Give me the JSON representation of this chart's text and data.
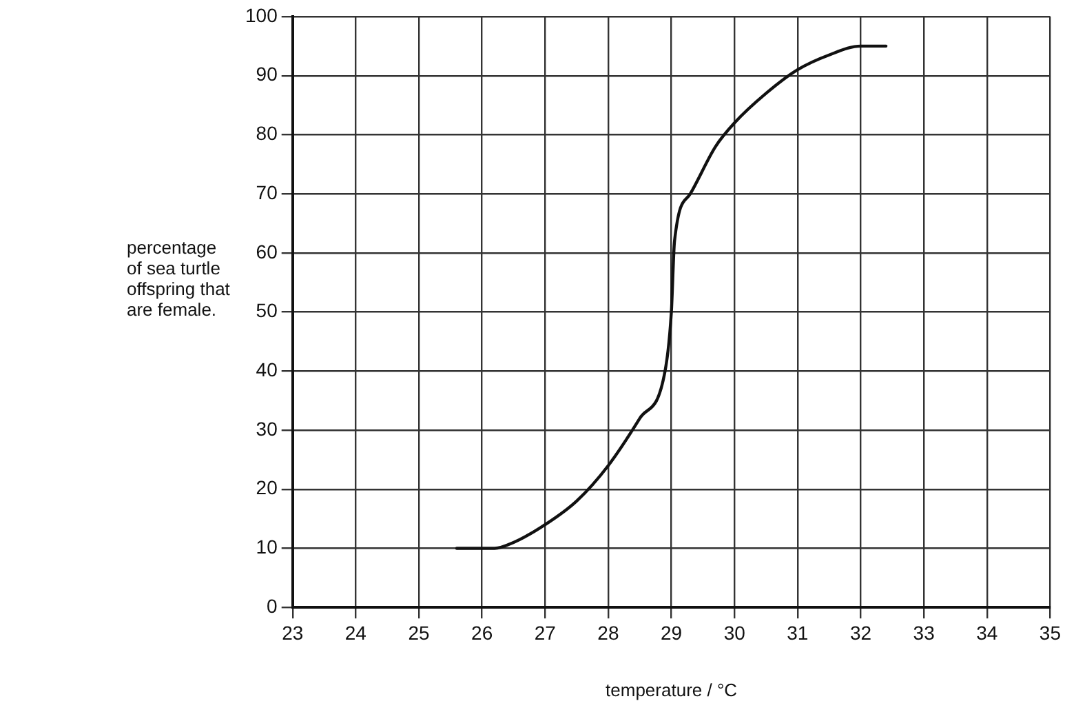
{
  "chart_data": {
    "type": "line",
    "xlabel": "temperature / °C",
    "ylabel": "percentage\nof sea turtle\noffspring that\nare female.",
    "series": [
      {
        "color": "#111111",
        "x": [
          25.6,
          26.2,
          26.5,
          27,
          27.5,
          28,
          28.5,
          28.9,
          29.0,
          29.05,
          29.3,
          29.7,
          30,
          30.5,
          31,
          31.5,
          32,
          32.4
        ],
        "values": [
          10,
          10,
          11,
          14,
          18,
          24,
          32,
          40,
          50,
          62,
          70,
          78,
          82,
          87,
          91,
          93.5,
          95,
          95
        ]
      }
    ],
    "xlim": [
      23,
      35
    ],
    "xticks": [
      23,
      24,
      25,
      26,
      27,
      28,
      29,
      30,
      31,
      32,
      33,
      34,
      35
    ],
    "ylim": [
      0,
      100
    ],
    "yticks": [
      0,
      10,
      20,
      30,
      40,
      50,
      60,
      70,
      80,
      90,
      100
    ],
    "grid": true,
    "legend": false,
    "marker": "none",
    "line_style": "solid"
  }
}
